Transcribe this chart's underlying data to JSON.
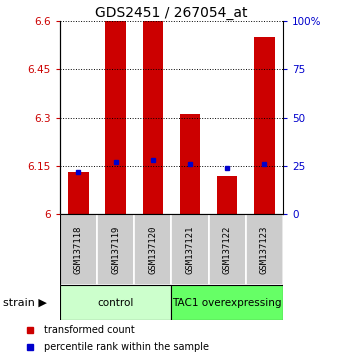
{
  "title": "GDS2451 / 267054_at",
  "samples": [
    "GSM137118",
    "GSM137119",
    "GSM137120",
    "GSM137121",
    "GSM137122",
    "GSM137123"
  ],
  "bar_values": [
    6.13,
    6.6,
    6.6,
    6.31,
    6.12,
    6.55
  ],
  "percentile_values": [
    22,
    27,
    28,
    26,
    24,
    26
  ],
  "ymin": 6.0,
  "ymax": 6.6,
  "yticks": [
    6.0,
    6.15,
    6.3,
    6.45,
    6.6
  ],
  "ytick_labels": [
    "6",
    "6.15",
    "6.3",
    "6.45",
    "6.6"
  ],
  "right_yticks": [
    0,
    25,
    50,
    75,
    100
  ],
  "right_ytick_labels": [
    "0",
    "25",
    "50",
    "75",
    "100%"
  ],
  "bar_color": "#cc0000",
  "dot_color": "#0000cc",
  "groups": [
    {
      "label": "control",
      "indices": [
        0,
        1,
        2
      ],
      "color": "#ccffcc"
    },
    {
      "label": "TAC1 overexpressing",
      "indices": [
        3,
        4,
        5
      ],
      "color": "#66ff66"
    }
  ],
  "group_label": "strain",
  "left_tick_color": "#cc0000",
  "right_tick_color": "#0000cc",
  "sample_box_color": "#cccccc",
  "legend_red_label": "transformed count",
  "legend_blue_label": "percentile rank within the sample"
}
